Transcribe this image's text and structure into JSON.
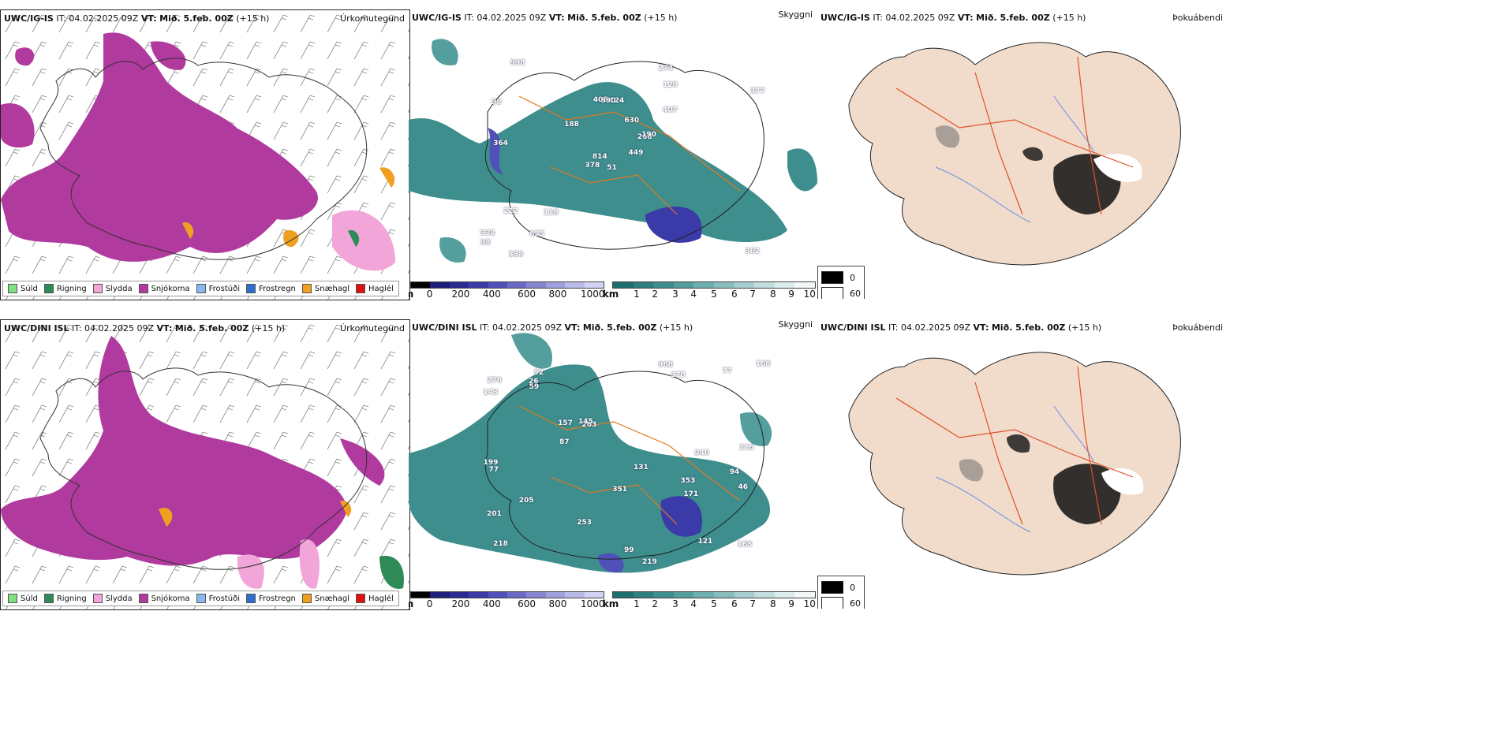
{
  "rows": [
    {
      "model_label": "UWC/IG-IS",
      "it_label": "IT:",
      "it_value": "04.02.2025 09Z",
      "vt_label": "VT:",
      "vt_value": "Mið. 5.feb. 00Z",
      "lead": "(+15 h)"
    },
    {
      "model_label": "UWC/DINI ISL",
      "it_label": "IT:",
      "it_value": "04.02.2025 09Z",
      "vt_label": "VT:",
      "vt_value": "Mið. 5.feb. 00Z",
      "lead": "(+15 h)"
    }
  ],
  "panels": {
    "precip_type_title": "Úrkomutegund",
    "visibility_title": "Skyggni",
    "fog_title": "Þokuábendi"
  },
  "precip_legend": [
    {
      "label": "Súld",
      "color": "#7ee07e"
    },
    {
      "label": "Rigning",
      "color": "#2e8b57"
    },
    {
      "label": "Slydda",
      "color": "#f2a5d8"
    },
    {
      "label": "Snjókoma",
      "color": "#b03a9e"
    },
    {
      "label": "Frostúði",
      "color": "#8ab8ee"
    },
    {
      "label": "Frostregn",
      "color": "#2d6fd0"
    },
    {
      "label": "Snæhagl",
      "color": "#f0a020"
    },
    {
      "label": "Haglél",
      "color": "#e01010"
    }
  ],
  "ceiling_scale": {
    "unit": "m",
    "ticks": [
      "0",
      "200",
      "400",
      "600",
      "800",
      "1000"
    ],
    "colors": [
      "#000000",
      "#1e1e78",
      "#2a2a90",
      "#3a3aa8",
      "#5050b8",
      "#6a6ac4",
      "#8686d0",
      "#a0a0dc",
      "#babaea",
      "#d2d2f4"
    ]
  },
  "visibility_scale": {
    "unit": "km",
    "ticks": [
      "1",
      "2",
      "3",
      "4",
      "5",
      "6",
      "7",
      "8",
      "9",
      "10"
    ],
    "colors": [
      "#1e6e6e",
      "#2e7e7e",
      "#3e8e8e",
      "#559e9e",
      "#6eaeae",
      "#8abebe",
      "#a6cece",
      "#c2dede",
      "#dcecec",
      "#f2f8f8"
    ]
  },
  "fog_legend": [
    {
      "label": "0",
      "color": "#000000"
    },
    {
      "label": "60",
      "color": "#ffffff"
    }
  ],
  "ceiling_labels_top": [
    "51",
    "98",
    "814",
    "938",
    "268",
    "118",
    "274",
    "124",
    "129",
    "449",
    "998",
    "362",
    "364",
    "377",
    "378",
    "407",
    "338",
    "405",
    "630",
    "222",
    "188",
    "98",
    "635",
    "990",
    "190"
  ],
  "ceiling_labels_bottom": [
    "353",
    "94",
    "218",
    "92",
    "263",
    "121",
    "201",
    "378",
    "157",
    "219",
    "143",
    "199",
    "276",
    "168",
    "253",
    "215",
    "351",
    "131",
    "145",
    "205",
    "168",
    "77",
    "87",
    "46",
    "968",
    "26",
    "171",
    "77",
    "59",
    "946",
    "99"
  ]
}
